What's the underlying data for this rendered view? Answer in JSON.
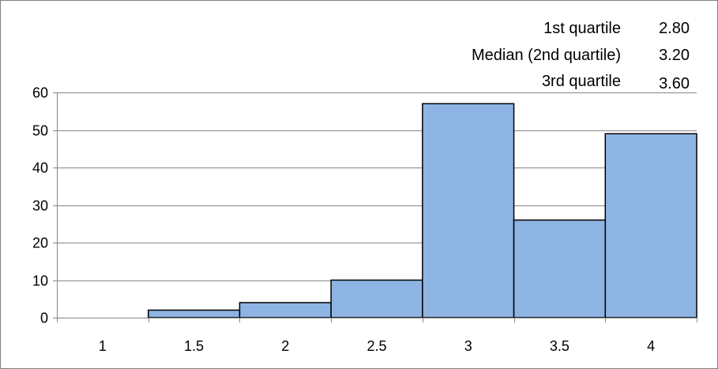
{
  "chart_data": {
    "type": "bar",
    "categories": [
      "1",
      "1.5",
      "2",
      "2.5",
      "3",
      "3.5",
      "4"
    ],
    "values": [
      0,
      2,
      4,
      10,
      57,
      26,
      49
    ],
    "ylim": [
      0,
      60
    ],
    "yticks": [
      "0",
      "10",
      "20",
      "30",
      "40",
      "50",
      "60"
    ],
    "grid": true,
    "legend": "none",
    "bar_color": "#8eb4e3",
    "bar_edge_color": "#000000",
    "title": "",
    "xlabel": "",
    "ylabel": ""
  },
  "stats": [
    {
      "label": "1st quartile",
      "value": "2.80"
    },
    {
      "label": "Median (2nd quartile)",
      "value": "3.20"
    },
    {
      "label": "3rd quartile",
      "value": "3.60"
    }
  ]
}
